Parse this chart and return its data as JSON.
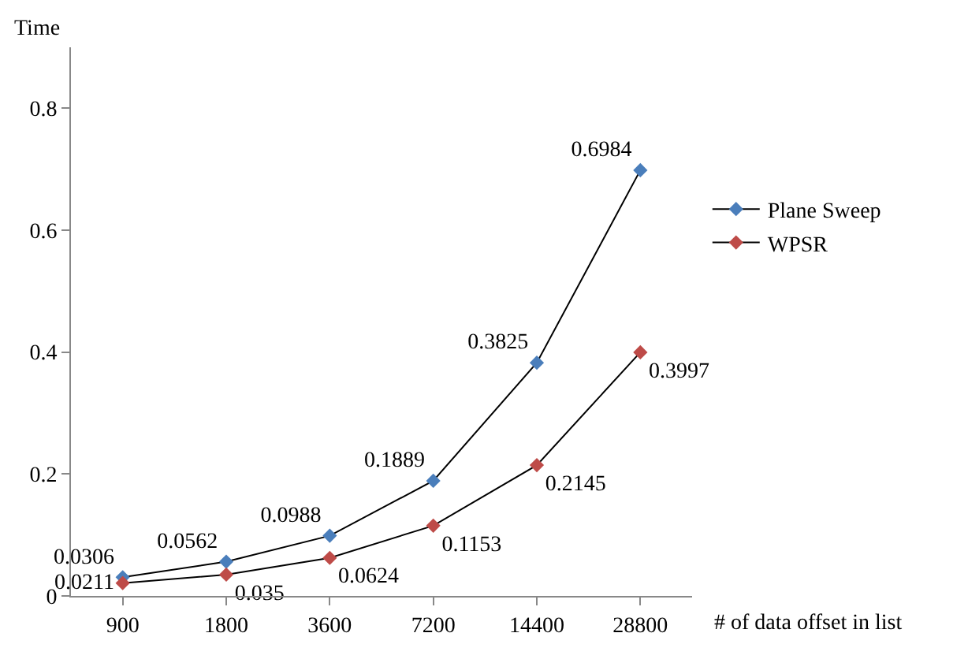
{
  "chart_data": {
    "type": "line",
    "xlabel": "# of data offset in list",
    "ylabel": "Time",
    "categories": [
      "900",
      "1800",
      "3600",
      "7200",
      "14400",
      "28800"
    ],
    "series": [
      {
        "name": "Plane Sweep",
        "color": "#4a7ebb",
        "values": [
          0.0306,
          0.0562,
          0.0988,
          0.1889,
          0.3825,
          0.6984
        ]
      },
      {
        "name": "WPSR",
        "color": "#be4b48",
        "values": [
          0.0211,
          0.035,
          0.0624,
          0.1153,
          0.2145,
          0.3997
        ]
      }
    ],
    "ylim": [
      0,
      0.9
    ],
    "yticks": [
      0,
      0.2,
      0.4,
      0.6,
      0.8
    ],
    "grid": false,
    "legend": "right",
    "marker": "diamond",
    "line_style": "solid",
    "data_labels": true
  }
}
